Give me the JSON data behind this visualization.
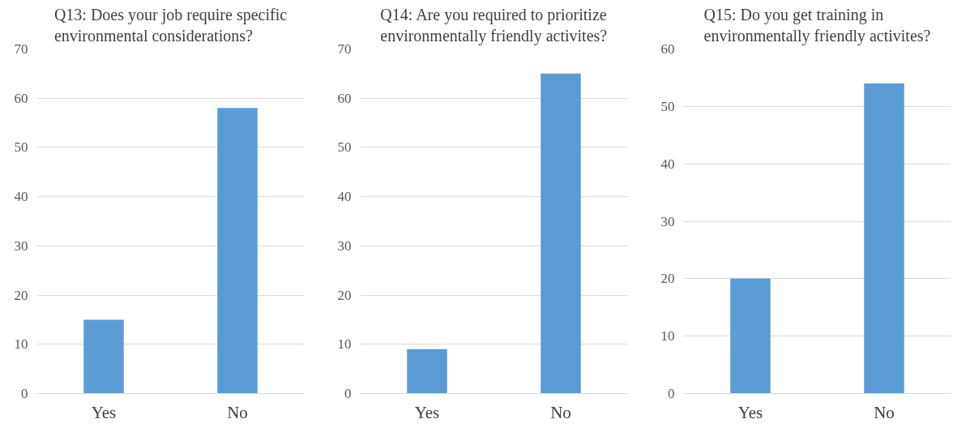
{
  "chart_data": [
    {
      "type": "bar",
      "title": "Q13: Does your job require specific environmental considerations?",
      "categories": [
        "Yes",
        "No"
      ],
      "values": [
        15,
        58
      ],
      "color": "#5b9bd5",
      "ylim": [
        0,
        70
      ],
      "yticks": [
        0,
        10,
        20,
        30,
        40,
        50,
        60,
        70
      ],
      "grid": "y"
    },
    {
      "type": "bar",
      "title": "Q14: Are you required to prioritize environmentally friendly activites?",
      "categories": [
        "Yes",
        "No"
      ],
      "values": [
        9,
        65
      ],
      "color": "#5b9bd5",
      "ylim": [
        0,
        70
      ],
      "yticks": [
        0,
        10,
        20,
        30,
        40,
        50,
        60,
        70
      ],
      "grid": "y"
    },
    {
      "type": "bar",
      "title": "Q15: Do you get training in environmentally friendly activites?",
      "categories": [
        "Yes",
        "No"
      ],
      "values": [
        20,
        54
      ],
      "color": "#5b9bd5",
      "ylim": [
        0,
        60
      ],
      "yticks": [
        0,
        10,
        20,
        30,
        40,
        50,
        60
      ],
      "grid": "y"
    }
  ]
}
